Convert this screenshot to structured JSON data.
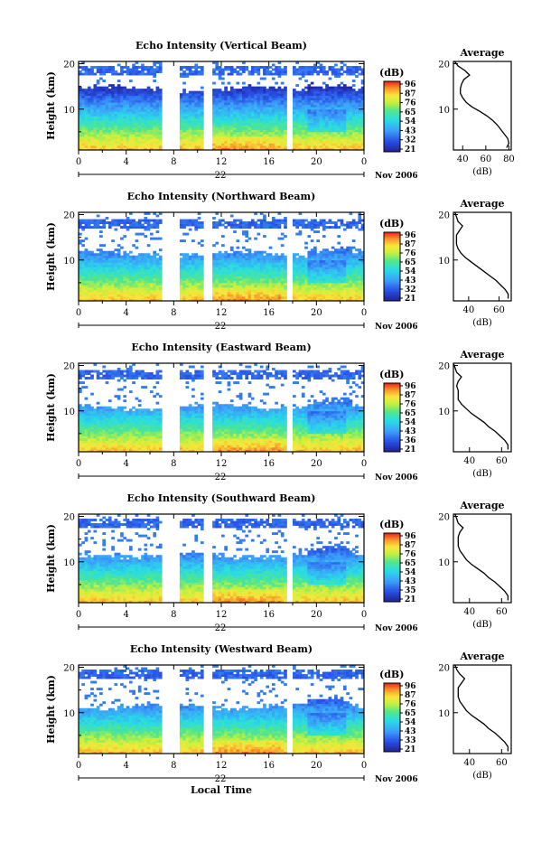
{
  "figure": {
    "x_axis_label": "Local Time",
    "date_label": "22",
    "month_label": "Nov 2006",
    "y_axis_label": "Height (km)",
    "average_title": "Average",
    "average_xlabel": "(dB)",
    "colorbar_unit": "(dB)"
  },
  "chart_data": [
    {
      "type": "heatmap",
      "title": "Echo Intensity (Vertical Beam)",
      "ylabel": "Height (km)",
      "xlabel": "Local Time",
      "x_ticks": [
        "0",
        "4",
        "8",
        "12",
        "16",
        "20",
        "0"
      ],
      "y_ticks": [
        "10",
        "20"
      ],
      "colorbar_ticks": [
        "96",
        "87",
        "76",
        "65",
        "54",
        "43",
        "32",
        "21"
      ],
      "average_x_ticks": [
        "40",
        "60",
        "80"
      ],
      "average_profile": [
        [
          1.5,
          78
        ],
        [
          2.5,
          80
        ],
        [
          3.5,
          79
        ],
        [
          4.5,
          76
        ],
        [
          5.5,
          73
        ],
        [
          6.5,
          70
        ],
        [
          7.5,
          66
        ],
        [
          8.5,
          61
        ],
        [
          9.5,
          55
        ],
        [
          10.5,
          48
        ],
        [
          11.5,
          43
        ],
        [
          12.5,
          40
        ],
        [
          13.5,
          38
        ],
        [
          14.5,
          38
        ],
        [
          15.5,
          39
        ],
        [
          16.5,
          41
        ],
        [
          17.5,
          46
        ],
        [
          18.5,
          42
        ],
        [
          19.5,
          36
        ],
        [
          20.5,
          33
        ]
      ],
      "params": {
        "ct": 15.5,
        "wt": 14.5,
        "ht": 17.5
      }
    },
    {
      "type": "heatmap",
      "title": "Echo Intensity (Northward Beam)",
      "ylabel": "Height (km)",
      "xlabel": "Local Time",
      "x_ticks": [
        "0",
        "4",
        "8",
        "12",
        "16",
        "20",
        "0"
      ],
      "y_ticks": [
        "10",
        "20"
      ],
      "colorbar_ticks": [
        "96",
        "87",
        "76",
        "65",
        "54",
        "43",
        "32",
        "21"
      ],
      "average_x_ticks": [
        "40",
        "60"
      ],
      "average_profile": [
        [
          1.5,
          66
        ],
        [
          2.5,
          66
        ],
        [
          3.5,
          64
        ],
        [
          4.5,
          61
        ],
        [
          5.5,
          58
        ],
        [
          6.5,
          54
        ],
        [
          7.5,
          50
        ],
        [
          8.5,
          46
        ],
        [
          9.5,
          42
        ],
        [
          10.5,
          38
        ],
        [
          11.5,
          35
        ],
        [
          12.5,
          33
        ],
        [
          13.5,
          32
        ],
        [
          14.5,
          32
        ],
        [
          15.5,
          32
        ],
        [
          16.5,
          34
        ],
        [
          17.5,
          36
        ],
        [
          18.5,
          33
        ],
        [
          19.5,
          32
        ],
        [
          20.5,
          31
        ]
      ],
      "params": {
        "ct": 12.5,
        "wt": 11.5,
        "ht": 17.0
      }
    },
    {
      "type": "heatmap",
      "title": "Echo Intensity (Eastward Beam)",
      "ylabel": "Height (km)",
      "xlabel": "Local Time",
      "x_ticks": [
        "0",
        "4",
        "8",
        "12",
        "16",
        "20",
        "0"
      ],
      "y_ticks": [
        "10",
        "20"
      ],
      "colorbar_ticks": [
        "96",
        "87",
        "76",
        "65",
        "54",
        "43",
        "36",
        "21"
      ],
      "average_x_ticks": [
        "40",
        "60"
      ],
      "average_profile": [
        [
          1.5,
          64
        ],
        [
          2.5,
          64
        ],
        [
          3.5,
          62
        ],
        [
          4.5,
          59
        ],
        [
          5.5,
          56
        ],
        [
          6.5,
          52
        ],
        [
          7.5,
          49
        ],
        [
          8.5,
          45
        ],
        [
          9.5,
          41
        ],
        [
          10.5,
          38
        ],
        [
          11.5,
          35
        ],
        [
          12.5,
          33
        ],
        [
          13.5,
          33
        ],
        [
          14.5,
          33
        ],
        [
          15.5,
          32
        ],
        [
          16.5,
          33
        ],
        [
          17.5,
          35
        ],
        [
          18.5,
          32
        ],
        [
          19.5,
          31
        ],
        [
          20.5,
          30
        ]
      ],
      "params": {
        "ct": 12.0,
        "wt": 11.0,
        "ht": 17.0
      }
    },
    {
      "type": "heatmap",
      "title": "Echo Intensity (Southward Beam)",
      "ylabel": "Height (km)",
      "xlabel": "Local Time",
      "x_ticks": [
        "0",
        "4",
        "8",
        "12",
        "16",
        "20",
        "0"
      ],
      "y_ticks": [
        "10",
        "20"
      ],
      "colorbar_ticks": [
        "96",
        "87",
        "76",
        "65",
        "54",
        "43",
        "35",
        "21"
      ],
      "average_x_ticks": [
        "40",
        "60"
      ],
      "average_profile": [
        [
          1.5,
          64
        ],
        [
          2.5,
          64
        ],
        [
          3.5,
          62
        ],
        [
          4.5,
          59
        ],
        [
          5.5,
          56
        ],
        [
          6.5,
          52
        ],
        [
          7.5,
          49
        ],
        [
          8.5,
          45
        ],
        [
          9.5,
          41
        ],
        [
          10.5,
          38
        ],
        [
          11.5,
          36
        ],
        [
          12.5,
          34
        ],
        [
          13.5,
          33
        ],
        [
          14.5,
          33
        ],
        [
          15.5,
          33
        ],
        [
          16.5,
          34
        ],
        [
          17.5,
          36
        ],
        [
          18.5,
          33
        ],
        [
          19.5,
          32
        ],
        [
          20.5,
          31
        ]
      ],
      "params": {
        "ct": 12.0,
        "wt": 11.5,
        "ht": 17.5
      }
    },
    {
      "type": "heatmap",
      "title": "Echo Intensity (Westward Beam)",
      "ylabel": "Height (km)",
      "xlabel": "Local Time",
      "x_ticks": [
        "0",
        "4",
        "8",
        "12",
        "16",
        "20",
        "0"
      ],
      "y_ticks": [
        "10",
        "20"
      ],
      "colorbar_ticks": [
        "96",
        "87",
        "76",
        "65",
        "54",
        "43",
        "33",
        "21"
      ],
      "average_x_ticks": [
        "40",
        "60"
      ],
      "average_profile": [
        [
          1.5,
          64
        ],
        [
          2.5,
          64
        ],
        [
          3.5,
          62
        ],
        [
          4.5,
          59
        ],
        [
          5.5,
          56
        ],
        [
          6.5,
          52
        ],
        [
          7.5,
          49
        ],
        [
          8.5,
          45
        ],
        [
          9.5,
          41
        ],
        [
          10.5,
          38
        ],
        [
          11.5,
          36
        ],
        [
          12.5,
          34
        ],
        [
          13.5,
          33
        ],
        [
          14.5,
          33
        ],
        [
          15.5,
          33
        ],
        [
          16.5,
          35
        ],
        [
          17.5,
          37
        ],
        [
          18.5,
          34
        ],
        [
          19.5,
          32
        ],
        [
          20.5,
          31
        ]
      ],
      "params": {
        "ct": 12.0,
        "wt": 11.5,
        "ht": 17.5
      }
    }
  ]
}
